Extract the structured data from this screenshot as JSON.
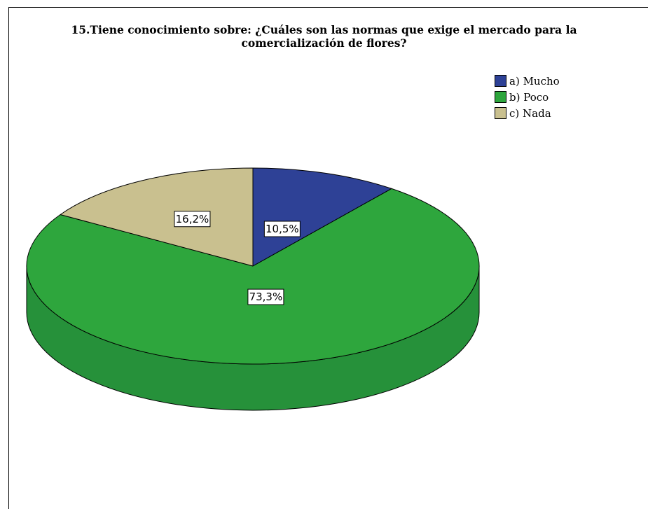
{
  "chart_data": {
    "type": "pie",
    "title_lines": [
      "15.Tiene conocimiento sobre: ¿Cuáles son las normas que exige el mercado para la",
      "comercialización de flores?"
    ],
    "categories": [
      "a) Mucho",
      "b) Poco",
      "c) Nada"
    ],
    "values": [
      10.5,
      73.3,
      16.2
    ],
    "data_labels": [
      "10,5%",
      "73,3%",
      "16,2%"
    ],
    "colors": [
      "#2e4196",
      "#2ea63d",
      "#c9c08f"
    ],
    "side_colors": [
      "#22307a",
      "#26913a",
      "#a39b6b"
    ],
    "legend_position": "top-right",
    "style": "3d"
  }
}
